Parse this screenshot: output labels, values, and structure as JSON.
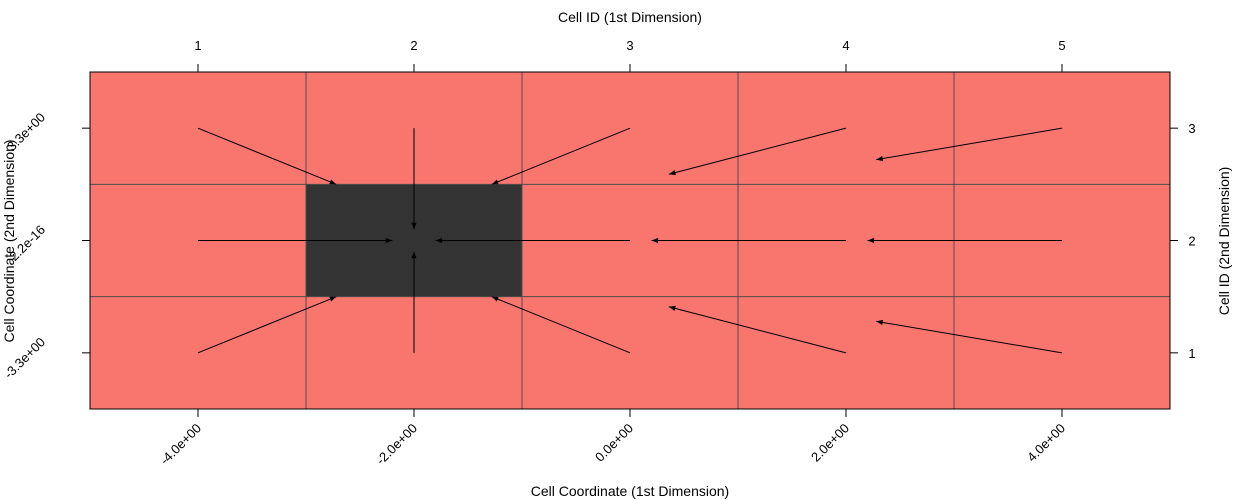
{
  "chart_data": {
    "type": "heatmap",
    "title": "",
    "x_top_label": "Cell ID (1st Dimension)",
    "x_bottom_label": "Cell Coordinate (1st Dimension)",
    "y_left_label": "Cell Coordinate (2nd Dimension)",
    "y_right_label": "Cell ID (2nd Dimension)",
    "x_ids": [
      1,
      2,
      3,
      4,
      5
    ],
    "y_ids": [
      1,
      2,
      3
    ],
    "x_top_ticks": [
      "1",
      "2",
      "3",
      "4",
      "5"
    ],
    "y_right_ticks": [
      "1",
      "2",
      "3"
    ],
    "x_bottom_ticks": [
      "-4.0e+00",
      "-2.0e+00",
      "0.0e+00",
      "2.0e+00",
      "4.0e+00"
    ],
    "y_left_ticks": [
      "-3.3e+00",
      "2.2e-16",
      "3.3e+00"
    ],
    "xlim": [
      0.5,
      5.5
    ],
    "ylim": [
      0.5,
      3.5
    ],
    "grid": true,
    "cell_colors": {
      "default": "#F8766D",
      "highlight": "#333333"
    },
    "highlighted_cells": [
      [
        2,
        2
      ]
    ],
    "arrows": [
      {
        "from": [
          1,
          3
        ],
        "to": [
          1.64,
          2.5
        ]
      },
      {
        "from": [
          2,
          3
        ],
        "to": [
          2,
          2.1
        ]
      },
      {
        "from": [
          3,
          3
        ],
        "to": [
          2.36,
          2.5
        ]
      },
      {
        "from": [
          4,
          3
        ],
        "to": [
          3.18,
          2.59
        ]
      },
      {
        "from": [
          5,
          3
        ],
        "to": [
          4.14,
          2.72
        ]
      },
      {
        "from": [
          1,
          2
        ],
        "to": [
          1.9,
          2
        ]
      },
      {
        "from": [
          3,
          2
        ],
        "to": [
          2.1,
          2
        ]
      },
      {
        "from": [
          4,
          2
        ],
        "to": [
          3.1,
          2
        ]
      },
      {
        "from": [
          5,
          2
        ],
        "to": [
          4.1,
          2
        ]
      },
      {
        "from": [
          1,
          1
        ],
        "to": [
          1.64,
          1.5
        ]
      },
      {
        "from": [
          2,
          1
        ],
        "to": [
          2,
          1.9
        ]
      },
      {
        "from": [
          3,
          1
        ],
        "to": [
          2.36,
          1.5
        ]
      },
      {
        "from": [
          4,
          1
        ],
        "to": [
          3.18,
          1.41
        ]
      },
      {
        "from": [
          5,
          1
        ],
        "to": [
          4.14,
          1.28
        ]
      }
    ]
  }
}
